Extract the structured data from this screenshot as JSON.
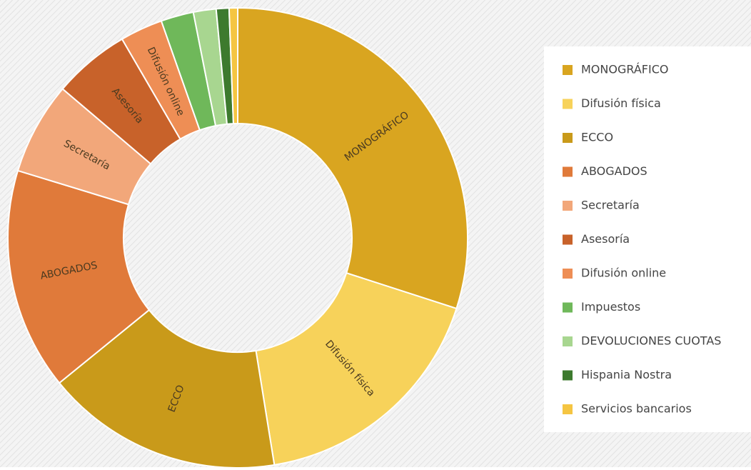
{
  "chart_data": {
    "type": "donut",
    "categories": [
      "MONOGRÁFICO",
      "Difusión física",
      "ECCO",
      "ABOGADOS",
      "Secretaría",
      "Asesoría",
      "Difusión online",
      "Impuestos",
      "DEVOLUCIONES CUOTAS",
      "Hispania Nostra",
      "Servicios bancarios"
    ],
    "values": [
      30,
      17.5,
      16.7,
      15.6,
      6.5,
      5.4,
      3,
      2.3,
      1.6,
      0.9,
      0.6
    ],
    "colors": [
      "#d9a520",
      "#f7d25a",
      "#c99a1a",
      "#e07a3a",
      "#f2a77a",
      "#c8622a",
      "#ee8e55",
      "#6fb85a",
      "#a8d690",
      "#3d7a2e",
      "#f5c542"
    ],
    "legend": "right"
  }
}
